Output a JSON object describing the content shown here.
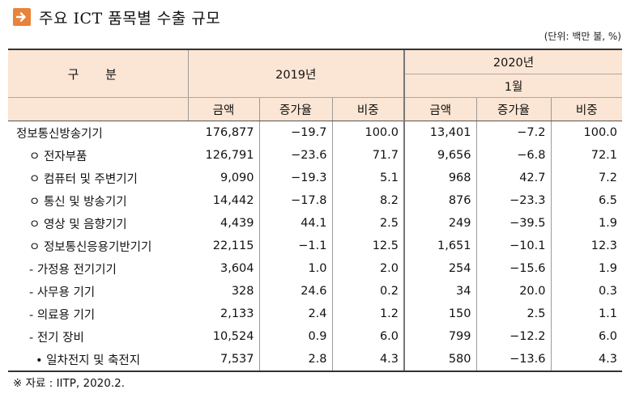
{
  "title": "주요 ICT 품목별 수출 규모",
  "unit_note": "(단위: 백만 불, %)",
  "header": {
    "category": "구 분",
    "year1": "2019년",
    "year2": "2020년",
    "month": "1월",
    "columns": [
      "금액",
      "증가율",
      "비중",
      "금액",
      "증가율",
      "비중"
    ]
  },
  "rows": [
    {
      "label": "정보통신방송기기",
      "indent": 0,
      "values": [
        "176,877",
        "−19.7",
        "100.0",
        "13,401",
        "−7.2",
        "100.0"
      ]
    },
    {
      "label": "ㅇ 전자부품",
      "indent": 1,
      "values": [
        "126,791",
        "−23.6",
        "71.7",
        "9,656",
        "−6.8",
        "72.1"
      ]
    },
    {
      "label": "ㅇ 컴퓨터 및 주변기기",
      "indent": 1,
      "values": [
        "9,090",
        "−19.3",
        "5.1",
        "968",
        "42.7",
        "7.2"
      ]
    },
    {
      "label": "ㅇ 통신 및 방송기기",
      "indent": 1,
      "values": [
        "14,442",
        "−17.8",
        "8.2",
        "876",
        "−23.3",
        "6.5"
      ]
    },
    {
      "label": "ㅇ 영상 및 음향기기",
      "indent": 1,
      "values": [
        "4,439",
        "44.1",
        "2.5",
        "249",
        "−39.5",
        "1.9"
      ]
    },
    {
      "label": "ㅇ 정보통신응용기반기기",
      "indent": 1,
      "values": [
        "22,115",
        "−1.1",
        "12.5",
        "1,651",
        "−10.1",
        "12.3"
      ]
    },
    {
      "label": "- 가정용 전기기기",
      "indent": 2,
      "values": [
        "3,604",
        "1.0",
        "2.0",
        "254",
        "−15.6",
        "1.9"
      ]
    },
    {
      "label": "- 사무용 기기",
      "indent": 2,
      "values": [
        "328",
        "24.6",
        "0.2",
        "34",
        "20.0",
        "0.3"
      ]
    },
    {
      "label": "- 의료용 기기",
      "indent": 2,
      "values": [
        "2,133",
        "2.4",
        "1.2",
        "150",
        "2.5",
        "1.1"
      ]
    },
    {
      "label": "- 전기 장비",
      "indent": 2,
      "values": [
        "10,524",
        "0.9",
        "6.0",
        "799",
        "−12.2",
        "6.0"
      ]
    },
    {
      "label": "• 일차전지 및 축전지",
      "indent": 3,
      "values": [
        "7,537",
        "2.8",
        "4.3",
        "580",
        "−13.6",
        "4.3"
      ]
    }
  ],
  "source": "※ 자료 : IITP, 2020.2."
}
